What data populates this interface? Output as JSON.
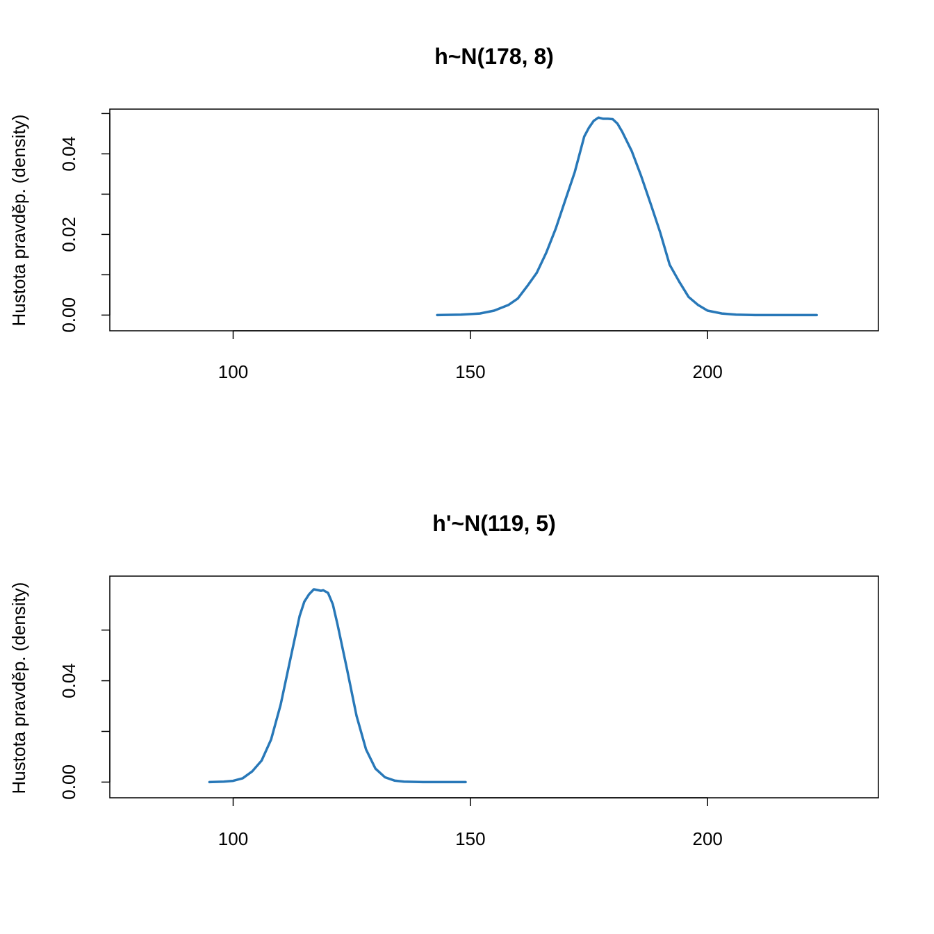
{
  "colors": {
    "curve": "#2878b8"
  },
  "chart_data": [
    {
      "type": "line",
      "title": "h~N(178, 8)",
      "xlabel": "",
      "ylabel": "Hustota pravděp. (density)",
      "xlim": [
        74,
        236
      ],
      "ylim": [
        -0.0039,
        0.0511
      ],
      "x_ticks": [
        100,
        150,
        200
      ],
      "x_tick_labels": [
        "100",
        "150",
        "200"
      ],
      "y_ticks": [
        0.0,
        0.01,
        0.02,
        0.03,
        0.04,
        0.05
      ],
      "y_tick_labels": [
        "0.00",
        "",
        "0.02",
        "",
        "0.04",
        ""
      ],
      "grid": false,
      "series": [
        {
          "x": [
            143,
            148,
            152,
            155,
            158,
            160,
            162,
            164,
            166,
            168,
            170,
            172,
            174,
            175,
            176,
            177,
            178,
            179,
            180,
            181,
            182,
            184,
            186,
            188,
            190,
            192,
            194,
            196,
            198,
            200,
            203,
            206,
            210,
            215,
            223
          ],
          "y": [
            0.0,
            0.0001,
            0.0004,
            0.0011,
            0.0025,
            0.0041,
            0.0072,
            0.0105,
            0.0155,
            0.0215,
            0.0285,
            0.0355,
            0.0443,
            0.0465,
            0.0482,
            0.049,
            0.0487,
            0.0487,
            0.0486,
            0.0475,
            0.0455,
            0.0407,
            0.0345,
            0.0276,
            0.0205,
            0.0125,
            0.0083,
            0.0045,
            0.0025,
            0.0011,
            0.0004,
            0.0001,
            0.0,
            0.0,
            0.0
          ]
        }
      ]
    },
    {
      "type": "line",
      "title": "h'~N(119, 5)",
      "xlabel": "",
      "ylabel": "Hustota pravděp. (density)",
      "xlim": [
        74,
        236
      ],
      "ylim": [
        -0.0062,
        0.0813
      ],
      "x_ticks": [
        100,
        150,
        200
      ],
      "x_tick_labels": [
        "100",
        "150",
        "200"
      ],
      "y_ticks": [
        0.0,
        0.02,
        0.04,
        0.06
      ],
      "y_tick_labels": [
        "0.00",
        "",
        "0.04",
        ""
      ],
      "grid": false,
      "series": [
        {
          "x": [
            95,
            98,
            100,
            102,
            104,
            106,
            108,
            110,
            112,
            114,
            115,
            116,
            117,
            118,
            118.5,
            119,
            120,
            121,
            122,
            124,
            126,
            128,
            130,
            132,
            134,
            136,
            140,
            144,
            149
          ],
          "y": [
            0.0,
            0.0002,
            0.0005,
            0.0015,
            0.0042,
            0.0085,
            0.0168,
            0.0305,
            0.048,
            0.0655,
            0.0712,
            0.0741,
            0.0761,
            0.0757,
            0.0755,
            0.0757,
            0.0747,
            0.0702,
            0.0622,
            0.0445,
            0.0262,
            0.0129,
            0.0053,
            0.0019,
            0.0006,
            0.0002,
            0.0,
            0.0,
            0.0
          ]
        }
      ]
    }
  ]
}
